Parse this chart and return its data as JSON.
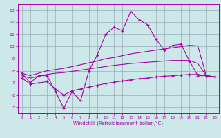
{
  "xlabel": "Windchill (Refroidissement éolien,°C)",
  "x": [
    0,
    1,
    2,
    3,
    4,
    5,
    6,
    7,
    8,
    9,
    10,
    11,
    12,
    13,
    14,
    15,
    16,
    17,
    18,
    19,
    20,
    21,
    22,
    23
  ],
  "line1": [
    7.8,
    7.0,
    7.6,
    7.6,
    6.3,
    4.9,
    6.3,
    5.5,
    8.0,
    9.3,
    11.0,
    11.6,
    11.3,
    12.9,
    12.2,
    11.8,
    10.6,
    9.7,
    10.1,
    10.2,
    8.8,
    7.6,
    7.6,
    7.5
  ],
  "line2": [
    7.8,
    7.6,
    7.8,
    8.0,
    8.1,
    8.2,
    8.35,
    8.5,
    8.65,
    8.8,
    9.0,
    9.1,
    9.25,
    9.4,
    9.5,
    9.6,
    9.7,
    9.8,
    9.9,
    10.0,
    10.1,
    10.05,
    7.6,
    7.5
  ],
  "line3": [
    7.6,
    7.4,
    7.55,
    7.7,
    7.8,
    7.85,
    7.95,
    8.05,
    8.15,
    8.25,
    8.35,
    8.45,
    8.52,
    8.6,
    8.65,
    8.7,
    8.75,
    8.8,
    8.85,
    8.85,
    8.85,
    8.6,
    7.6,
    7.5
  ],
  "line4": [
    7.4,
    6.9,
    7.0,
    7.1,
    6.5,
    6.0,
    6.35,
    6.5,
    6.65,
    6.8,
    6.95,
    7.05,
    7.15,
    7.25,
    7.35,
    7.4,
    7.5,
    7.55,
    7.6,
    7.65,
    7.7,
    7.7,
    7.6,
    7.5
  ],
  "color": "#aa00aa",
  "bg_color": "#cce8e8",
  "grid_color": "#99aabb",
  "ylim": [
    4.5,
    13.5
  ],
  "xlim": [
    -0.5,
    23.5
  ],
  "yticks": [
    5,
    6,
    7,
    8,
    9,
    10,
    11,
    12,
    13
  ],
  "xticks": [
    0,
    1,
    2,
    3,
    4,
    5,
    6,
    7,
    8,
    9,
    10,
    11,
    12,
    13,
    14,
    15,
    16,
    17,
    18,
    19,
    20,
    21,
    22,
    23
  ]
}
